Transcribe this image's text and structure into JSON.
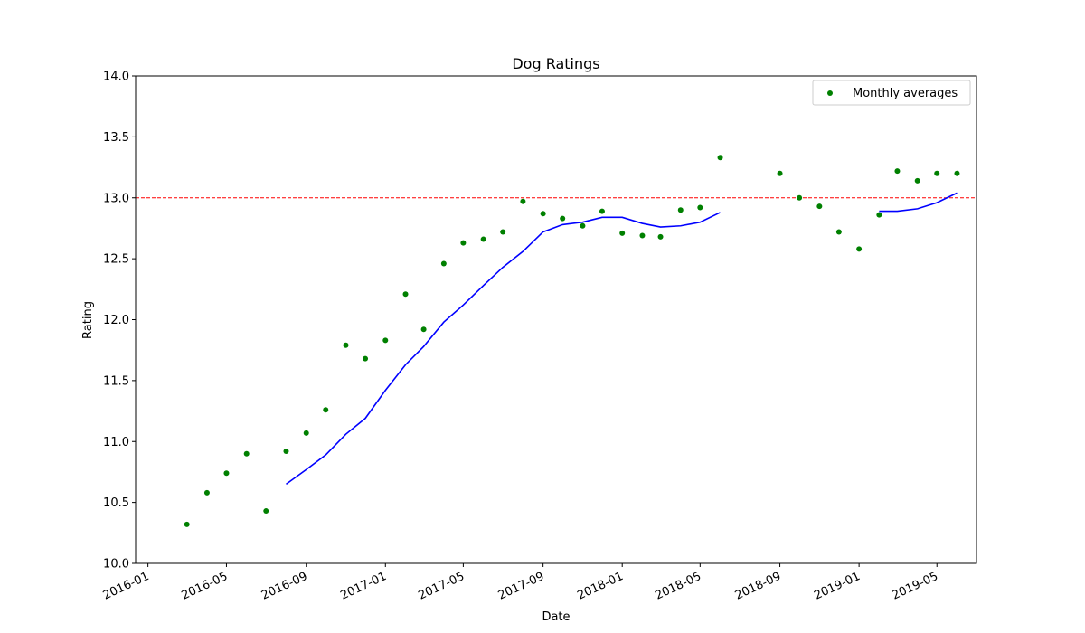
{
  "chart_data": {
    "type": "line",
    "title": "Dog Ratings",
    "xlabel": "Date",
    "ylabel": "Rating",
    "ylim": [
      10.0,
      14.0
    ],
    "xlim": [
      "2015-12-13",
      "2019-07-01"
    ],
    "y_ticks": [
      "10.0",
      "10.5",
      "11.0",
      "11.5",
      "12.0",
      "12.5",
      "13.0",
      "13.5",
      "14.0"
    ],
    "x_ticks": [
      "2016-01",
      "2016-05",
      "2016-09",
      "2017-01",
      "2017-05",
      "2017-09",
      "2018-01",
      "2018-05",
      "2018-09",
      "2019-01",
      "2019-05"
    ],
    "grid": false,
    "legend": {
      "position": "top-right",
      "entries": [
        "Monthly averages"
      ]
    },
    "reference_line": {
      "y": 13.0,
      "color": "#ff0000",
      "style": "dashed"
    },
    "series": [
      {
        "name": "Monthly averages",
        "kind": "scatter",
        "color": "#008000",
        "points": [
          {
            "x": "2016-03-01",
            "y": 10.32
          },
          {
            "x": "2016-04-01",
            "y": 10.58
          },
          {
            "x": "2016-05-01",
            "y": 10.74
          },
          {
            "x": "2016-06-01",
            "y": 10.9
          },
          {
            "x": "2016-07-01",
            "y": 10.43
          },
          {
            "x": "2016-08-01",
            "y": 10.92
          },
          {
            "x": "2016-09-01",
            "y": 11.07
          },
          {
            "x": "2016-10-01",
            "y": 11.26
          },
          {
            "x": "2016-11-01",
            "y": 11.79
          },
          {
            "x": "2016-12-01",
            "y": 11.68
          },
          {
            "x": "2017-01-01",
            "y": 11.83
          },
          {
            "x": "2017-02-01",
            "y": 12.21
          },
          {
            "x": "2017-03-01",
            "y": 11.92
          },
          {
            "x": "2017-04-01",
            "y": 12.46
          },
          {
            "x": "2017-05-01",
            "y": 12.63
          },
          {
            "x": "2017-06-01",
            "y": 12.66
          },
          {
            "x": "2017-07-01",
            "y": 12.72
          },
          {
            "x": "2017-08-01",
            "y": 12.97
          },
          {
            "x": "2017-09-01",
            "y": 12.87
          },
          {
            "x": "2017-10-01",
            "y": 12.83
          },
          {
            "x": "2017-11-01",
            "y": 12.77
          },
          {
            "x": "2017-12-01",
            "y": 12.89
          },
          {
            "x": "2018-01-01",
            "y": 12.71
          },
          {
            "x": "2018-02-01",
            "y": 12.69
          },
          {
            "x": "2018-03-01",
            "y": 12.68
          },
          {
            "x": "2018-04-01",
            "y": 12.9
          },
          {
            "x": "2018-05-01",
            "y": 12.92
          },
          {
            "x": "2018-06-01",
            "y": 13.33
          },
          {
            "x": "2018-09-01",
            "y": 13.2
          },
          {
            "x": "2018-10-01",
            "y": 13.0
          },
          {
            "x": "2018-11-01",
            "y": 12.93
          },
          {
            "x": "2018-12-01",
            "y": 12.72
          },
          {
            "x": "2019-01-01",
            "y": 12.58
          },
          {
            "x": "2019-02-01",
            "y": 12.86
          },
          {
            "x": "2019-03-01",
            "y": 13.22
          },
          {
            "x": "2019-04-01",
            "y": 13.14
          },
          {
            "x": "2019-05-01",
            "y": 13.2
          },
          {
            "x": "2019-06-01",
            "y": 13.2
          }
        ]
      },
      {
        "kind": "line",
        "color": "#0000ff",
        "segments": [
          [
            {
              "x": "2016-08-01",
              "y": 10.65
            },
            {
              "x": "2016-09-01",
              "y": 10.77
            },
            {
              "x": "2016-10-01",
              "y": 10.89
            },
            {
              "x": "2016-11-01",
              "y": 11.06
            },
            {
              "x": "2016-12-01",
              "y": 11.19
            },
            {
              "x": "2017-01-01",
              "y": 11.42
            },
            {
              "x": "2017-02-01",
              "y": 11.63
            },
            {
              "x": "2017-03-01",
              "y": 11.78
            },
            {
              "x": "2017-04-01",
              "y": 11.98
            },
            {
              "x": "2017-05-01",
              "y": 12.12
            },
            {
              "x": "2017-06-01",
              "y": 12.28
            },
            {
              "x": "2017-07-01",
              "y": 12.43
            },
            {
              "x": "2017-08-01",
              "y": 12.56
            },
            {
              "x": "2017-09-01",
              "y": 12.72
            },
            {
              "x": "2017-10-01",
              "y": 12.78
            },
            {
              "x": "2017-11-01",
              "y": 12.8
            },
            {
              "x": "2017-12-01",
              "y": 12.84
            },
            {
              "x": "2018-01-01",
              "y": 12.84
            },
            {
              "x": "2018-02-01",
              "y": 12.79
            },
            {
              "x": "2018-03-01",
              "y": 12.76
            },
            {
              "x": "2018-04-01",
              "y": 12.77
            },
            {
              "x": "2018-05-01",
              "y": 12.8
            },
            {
              "x": "2018-06-01",
              "y": 12.88
            }
          ],
          [
            {
              "x": "2019-02-01",
              "y": 12.89
            },
            {
              "x": "2019-03-01",
              "y": 12.89
            },
            {
              "x": "2019-04-01",
              "y": 12.91
            },
            {
              "x": "2019-05-01",
              "y": 12.96
            },
            {
              "x": "2019-06-01",
              "y": 13.04
            }
          ]
        ]
      }
    ]
  }
}
